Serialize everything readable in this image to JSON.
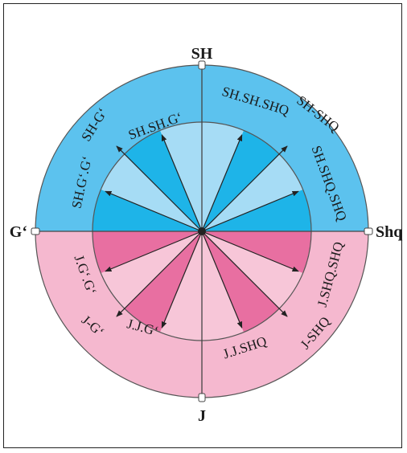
{
  "colors": {
    "north_outer": "#5cc2ee",
    "north_inner": "#a6dcf5",
    "north_dark": "#1eb4e8",
    "south_outer": "#f5b8cf",
    "south_inner": "#f7c6d8",
    "south_dark": "#e86fa1",
    "line": "#333333"
  },
  "cardinals": {
    "north": "SH",
    "south": "J",
    "west": "G‘",
    "east": "Shq"
  },
  "directions": {
    "n_nw": "SH.SH.G‘",
    "nw": "SH-G‘",
    "w_nw": "SH.G‘.G‘",
    "n_ne": "SH.SH.SHQ",
    "ne": "SH-SHQ",
    "e_ne": "SH.SHQ.SHQ",
    "e_se": "J.SHQ.SHQ",
    "se": "J-SHQ",
    "s_se": "J.J.SHQ",
    "w_sw": "J.G‘.G‘",
    "sw": "J-G‘",
    "s_sw": "J.J.G‘"
  }
}
